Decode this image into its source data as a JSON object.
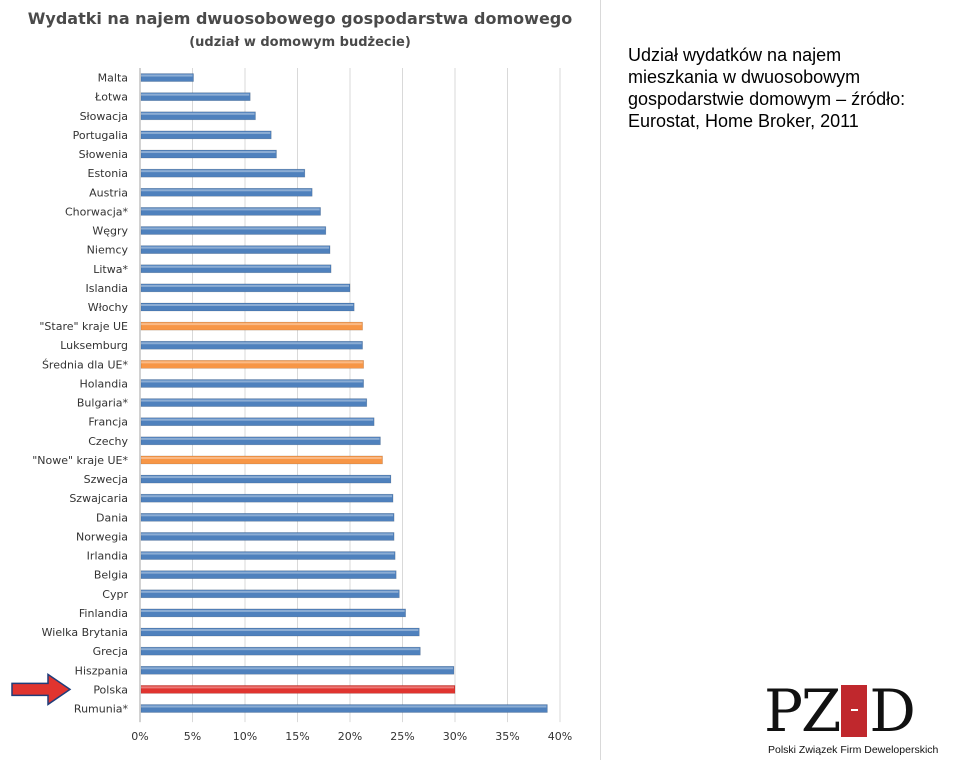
{
  "side_caption": "Udział wydatków na najem mieszkania w dwuosobowym gospodarstwie domowym – źródło: Eurostat, Home Broker, 2011",
  "logo": {
    "letters_left": "PZ",
    "letters_right": "D",
    "caption": "Polski Związek Firm Deweloperskich"
  },
  "colors": {
    "bar_default": "#4f81bd",
    "bar_group": "#f79646",
    "bar_highlight": "#e0342f",
    "arrow": "#e0342f",
    "grid": "#d9d9d9",
    "logo_door": "#c0282d"
  },
  "chart_data": {
    "type": "bar",
    "orientation": "horizontal",
    "title": "Wydatki na najem dwuosobowego gospodarstwa domowego",
    "subtitle": "(udział w domowym budżecie)",
    "xlim": [
      0,
      40
    ],
    "x_ticks": [
      "0%",
      "5%",
      "10%",
      "15%",
      "20%",
      "25%",
      "30%",
      "35%",
      "40%"
    ],
    "grid": "vertical",
    "highlighted_category": "Polska",
    "categories": [
      "Malta",
      "Łotwa",
      "Słowacja",
      "Portugalia",
      "Słowenia",
      "Estonia",
      "Austria",
      "Chorwacja*",
      "Węgry",
      "Niemcy",
      "Litwa*",
      "Islandia",
      "Włochy",
      "\"Stare\" kraje UE",
      "Luksemburg",
      "Średnia dla UE*",
      "Holandia",
      "Bulgaria*",
      "Francja",
      "Czechy",
      "\"Nowe\" kraje UE*",
      "Szwecja",
      "Szwajcaria",
      "Dania",
      "Norwegia",
      "Irlandia",
      "Belgia",
      "Cypr",
      "Finlandia",
      "Wielka Brytania",
      "Grecja",
      "Hiszpania",
      "Polska",
      "Rumunia*"
    ],
    "values": [
      5.1,
      10.5,
      11.0,
      12.5,
      13.0,
      15.7,
      16.4,
      17.2,
      17.7,
      18.1,
      18.2,
      20.0,
      20.4,
      21.2,
      21.2,
      21.3,
      21.3,
      21.6,
      22.3,
      22.9,
      23.1,
      23.9,
      24.1,
      24.2,
      24.2,
      24.3,
      24.4,
      24.7,
      25.3,
      26.6,
      26.7,
      29.9,
      30.0,
      38.8
    ],
    "bar_colors": [
      "blue",
      "blue",
      "blue",
      "blue",
      "blue",
      "blue",
      "blue",
      "blue",
      "blue",
      "blue",
      "blue",
      "blue",
      "blue",
      "orange",
      "blue",
      "orange",
      "blue",
      "blue",
      "blue",
      "blue",
      "orange",
      "blue",
      "blue",
      "blue",
      "blue",
      "blue",
      "blue",
      "blue",
      "blue",
      "blue",
      "blue",
      "blue",
      "red",
      "blue"
    ]
  }
}
